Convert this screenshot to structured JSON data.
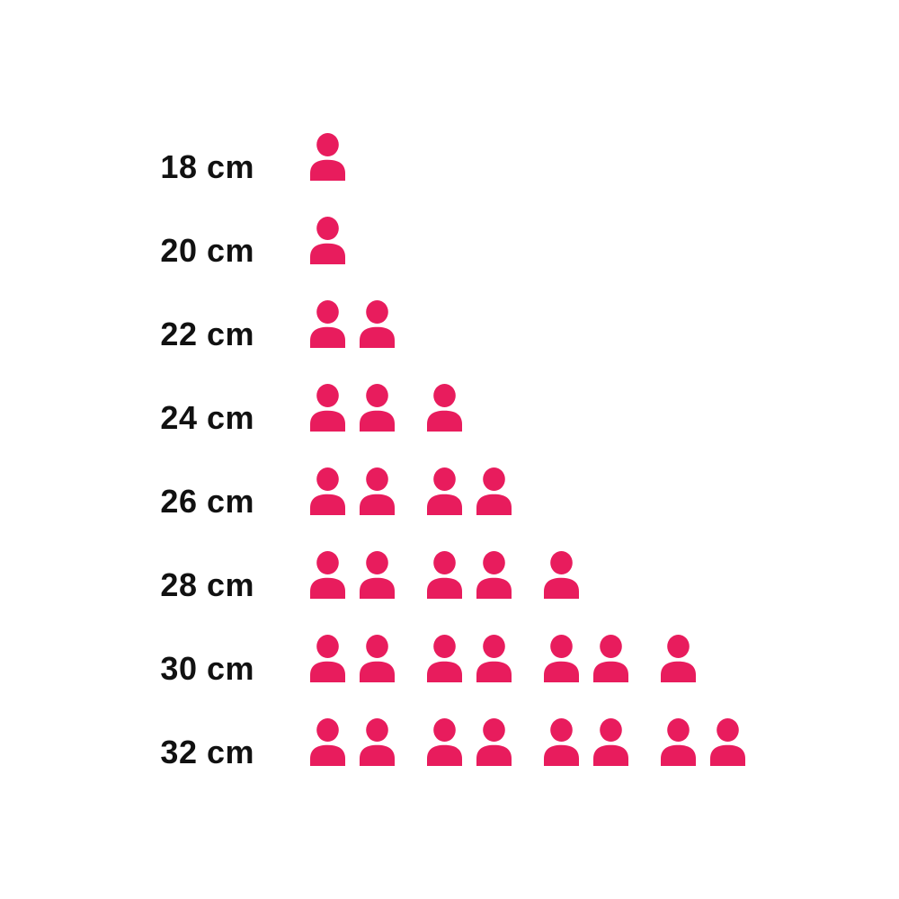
{
  "page": {
    "background": "#ffffff"
  },
  "chart_data": {
    "type": "bar",
    "variant": "pictogram",
    "title": "",
    "unit_icon": "person-icon",
    "icon_value": 1,
    "icon_color": "#e81c5d",
    "label_color": "#111111",
    "background": "#ffffff",
    "categories": [
      "18 cm",
      "20 cm",
      "22 cm",
      "24 cm",
      "26 cm",
      "28 cm",
      "30 cm",
      "32 cm"
    ],
    "values": [
      1,
      1,
      2,
      3,
      4,
      5,
      7,
      8
    ],
    "icon_group_size": 2,
    "legend_position": "none",
    "grid": false,
    "axis_lines": false
  }
}
